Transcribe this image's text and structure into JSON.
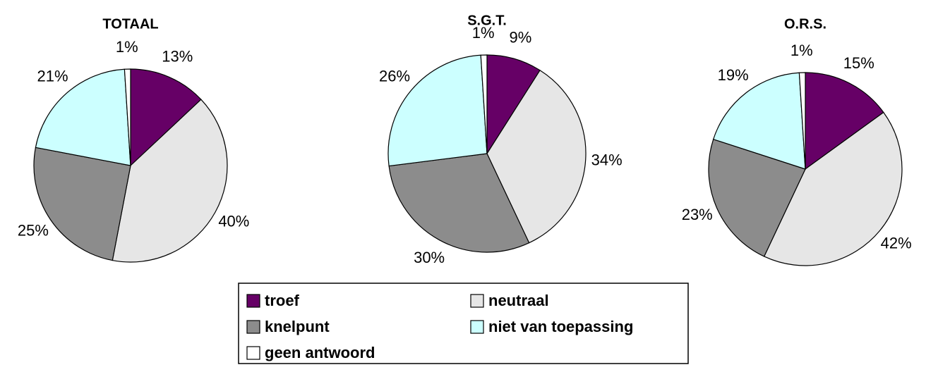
{
  "chart_data": [
    {
      "type": "pie",
      "title": "TOTAAL",
      "categories": [
        "troef",
        "neutraal",
        "knelpunt",
        "niet van toepassing",
        "geen antwoord"
      ],
      "colors": [
        "#660066",
        "#e6e6e6",
        "#8c8c8c",
        "#ccffff",
        "#ffffff"
      ],
      "values": [
        13,
        40,
        25,
        21,
        1
      ],
      "value_labels": [
        "13%",
        "40%",
        "25%",
        "21%",
        "1%"
      ]
    },
    {
      "type": "pie",
      "title": "S.G.T.",
      "categories": [
        "troef",
        "neutraal",
        "knelpunt",
        "niet van toepassing",
        "geen antwoord"
      ],
      "colors": [
        "#660066",
        "#e6e6e6",
        "#8c8c8c",
        "#ccffff",
        "#ffffff"
      ],
      "values": [
        9,
        34,
        30,
        26,
        1
      ],
      "value_labels": [
        "9%",
        "34%",
        "30%",
        "26%",
        "1%"
      ]
    },
    {
      "type": "pie",
      "title": "O.R.S.",
      "categories": [
        "troef",
        "neutraal",
        "knelpunt",
        "niet van toepassing",
        "geen antwoord"
      ],
      "colors": [
        "#660066",
        "#e6e6e6",
        "#8c8c8c",
        "#ccffff",
        "#ffffff"
      ],
      "values": [
        15,
        42,
        23,
        19,
        1
      ],
      "value_labels": [
        "15%",
        "42%",
        "23%",
        "19%",
        "1%"
      ]
    }
  ]
}
